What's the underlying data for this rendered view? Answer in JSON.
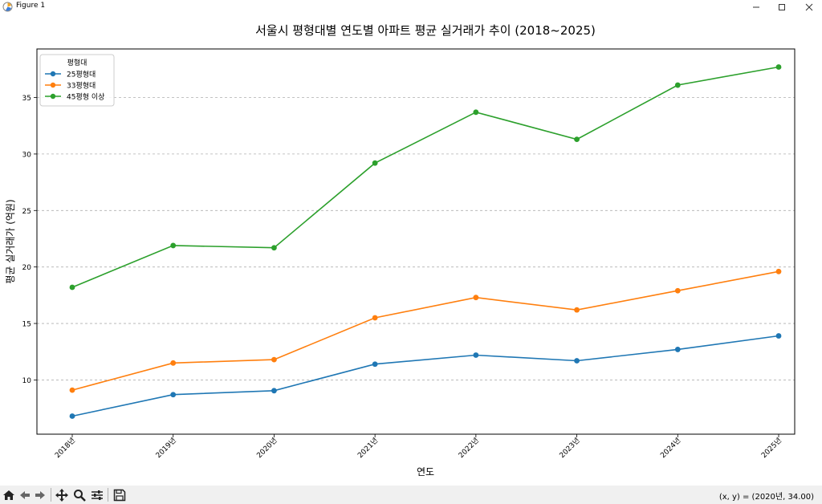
{
  "window": {
    "title": "Figure 1",
    "minimize_icon": "minimize-icon",
    "maximize_icon": "maximize-icon",
    "close_icon": "close-icon"
  },
  "toolbar": {
    "tools": [
      "home-icon",
      "back-arrow-icon",
      "forward-arrow-icon",
      "pan-icon",
      "zoom-icon",
      "configure-subplots-icon",
      "save-icon"
    ],
    "coords": "(x, y) = (2020년, 34.00)"
  },
  "chart_data": {
    "type": "line",
    "title": "서울시 평형대별 연도별 아파트 평균 실거래가 추이 (2018~2025)",
    "xlabel": "연도",
    "ylabel": "평균 실거래가 (억원)",
    "categories": [
      "2018년",
      "2019년",
      "2020년",
      "2021년",
      "2022년",
      "2023년",
      "2024년",
      "2025년"
    ],
    "series": [
      {
        "name": "25평형대",
        "color": "#1f77b4",
        "values": [
          6.8,
          8.7,
          9.05,
          11.4,
          12.2,
          11.7,
          12.7,
          13.9
        ]
      },
      {
        "name": "33평형대",
        "color": "#ff7f0e",
        "values": [
          9.1,
          11.5,
          11.8,
          15.5,
          17.3,
          16.2,
          17.9,
          19.6
        ]
      },
      {
        "name": "45평형 이상",
        "color": "#2ca02c",
        "values": [
          18.2,
          21.9,
          21.7,
          29.2,
          33.7,
          31.3,
          36.1,
          37.7
        ]
      }
    ],
    "legend_title": "평형대",
    "legend_position": "top-left",
    "yticks": [
      10,
      15,
      20,
      25,
      30,
      35
    ],
    "ylim": [
      5.2,
      39.3
    ],
    "grid": "y-dashed"
  }
}
